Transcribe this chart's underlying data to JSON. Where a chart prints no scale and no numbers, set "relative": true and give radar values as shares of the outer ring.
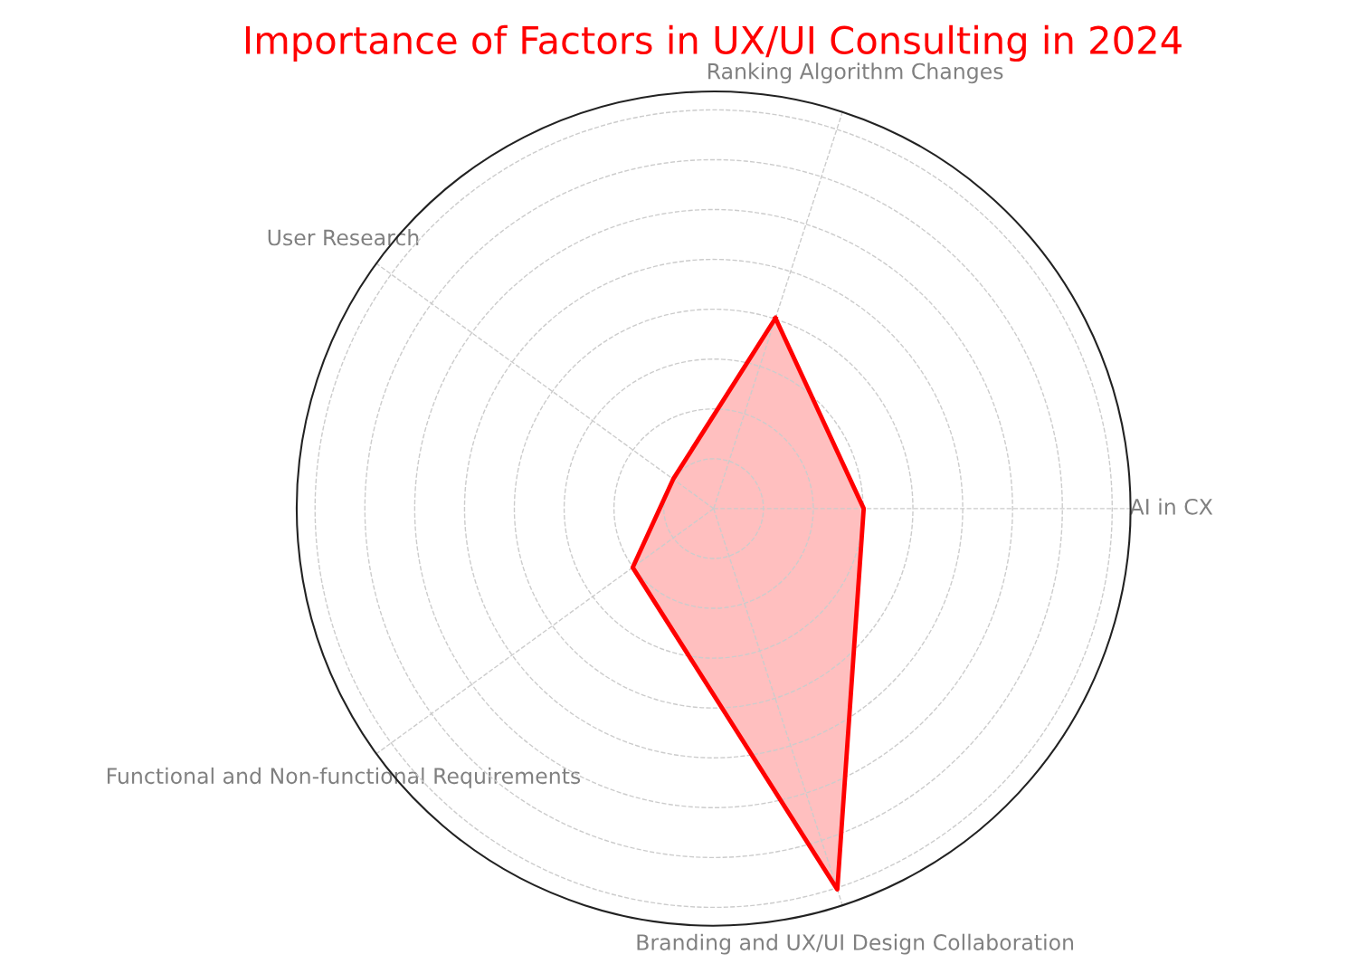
{
  "chart_data": {
    "type": "radar",
    "title": "Importance of Factors in UX/UI Consulting in 2024",
    "categories": [
      "Ranking Algorithm Changes",
      "AI in CX",
      "Branding and UX/UI Design Collaboration",
      "Functional and Non-functional Requirements",
      "User Research"
    ],
    "relative": true,
    "grid": true,
    "line_style": "solid",
    "marker": "none",
    "series": [
      {
        "color": "#ff0000",
        "values": [
          0.48,
          0.36,
          0.96,
          0.24,
          0.12
        ]
      }
    ]
  }
}
